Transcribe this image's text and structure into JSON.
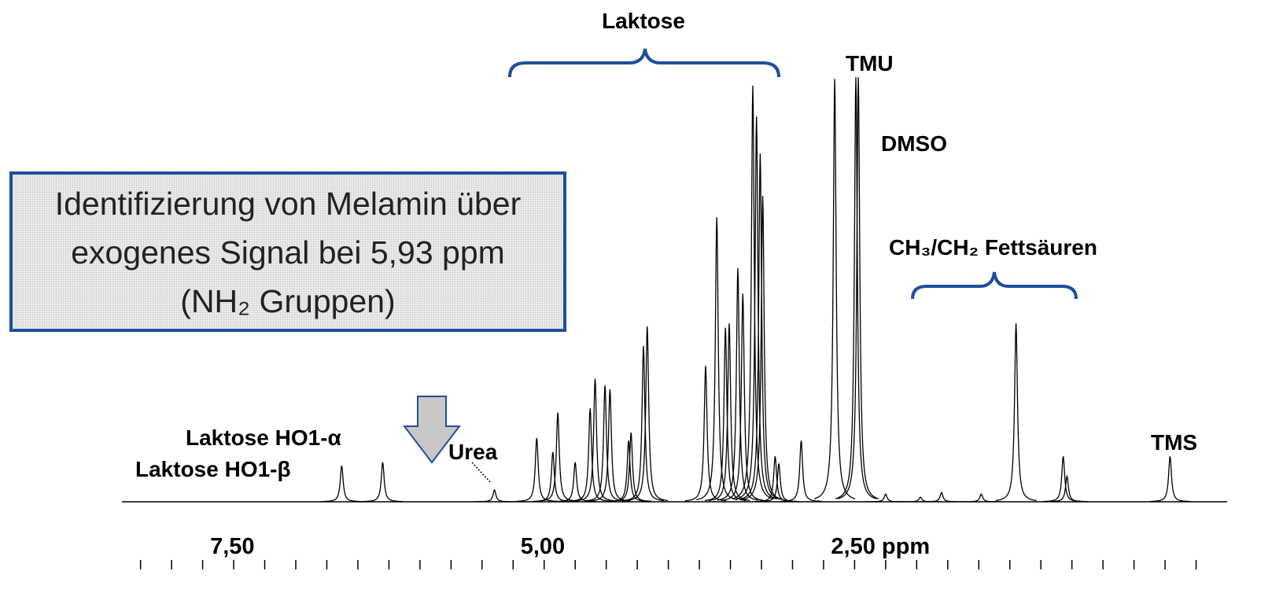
{
  "chart_data": {
    "type": "spectrum",
    "color": "#000000",
    "x": [
      6.63,
      6.3,
      5.4,
      5.06,
      4.93,
      4.89,
      4.75,
      4.63,
      4.59,
      4.51,
      4.47,
      4.32,
      4.3,
      4.2,
      4.17,
      3.7,
      3.61,
      3.54,
      3.51,
      3.44,
      3.4,
      3.32,
      3.29,
      3.26,
      3.24,
      3.14,
      3.11,
      2.93,
      2.66,
      2.49,
      2.47,
      2.25,
      1.97,
      1.8,
      1.48,
      1.2,
      0.82,
      0.79,
      -0.04
    ],
    "values": [
      8.5,
      9.3,
      2.8,
      15,
      11.7,
      21,
      9.3,
      22,
      29,
      27.4,
      26.5,
      14.4,
      16.3,
      36.7,
      41.3,
      32,
      67,
      41,
      42,
      55,
      49,
      98,
      90.7,
      82,
      72,
      10.7,
      9,
      14.4,
      99.6,
      100,
      100,
      1.8,
      1.1,
      2.2,
      1.8,
      42,
      10.7,
      6,
      10.7
    ],
    "xlim": [
      8.4,
      -0.5
    ],
    "ylim": [
      0,
      100
    ],
    "xticks": [
      {
        "value": 7.5,
        "label": "7,50"
      },
      {
        "value": 5.0,
        "label": "5,00"
      },
      {
        "value": 2.5,
        "label": "2,50 ppm"
      }
    ],
    "xminorticks": [
      8.25,
      8.0,
      7.75,
      7.5,
      7.25,
      7.0,
      6.75,
      6.5,
      6.25,
      6.0,
      5.75,
      5.5,
      5.25,
      5.0,
      4.75,
      4.5,
      4.25,
      4.0,
      3.75,
      3.5,
      3.25,
      3.0,
      2.75,
      2.5,
      2.25,
      2.0,
      1.75,
      1.5,
      1.25,
      1.0,
      0.75,
      0.5,
      0.25,
      0.0,
      -0.25
    ],
    "annotations": {
      "laktose": "Laktose",
      "tmu": "TMU",
      "dmso": "DMSO",
      "fatty_acids": "CH₃/CH₂ Fettsäuren",
      "ho1_alpha": "Laktose HO1-α",
      "ho1_beta": "Laktose HO1-β",
      "urea": "Urea",
      "tms": "TMS"
    },
    "box": [
      "Identifizierung von Melamin über",
      "exogenes Signal bei 5,93 ppm",
      "(NH₂ Gruppen)"
    ]
  }
}
